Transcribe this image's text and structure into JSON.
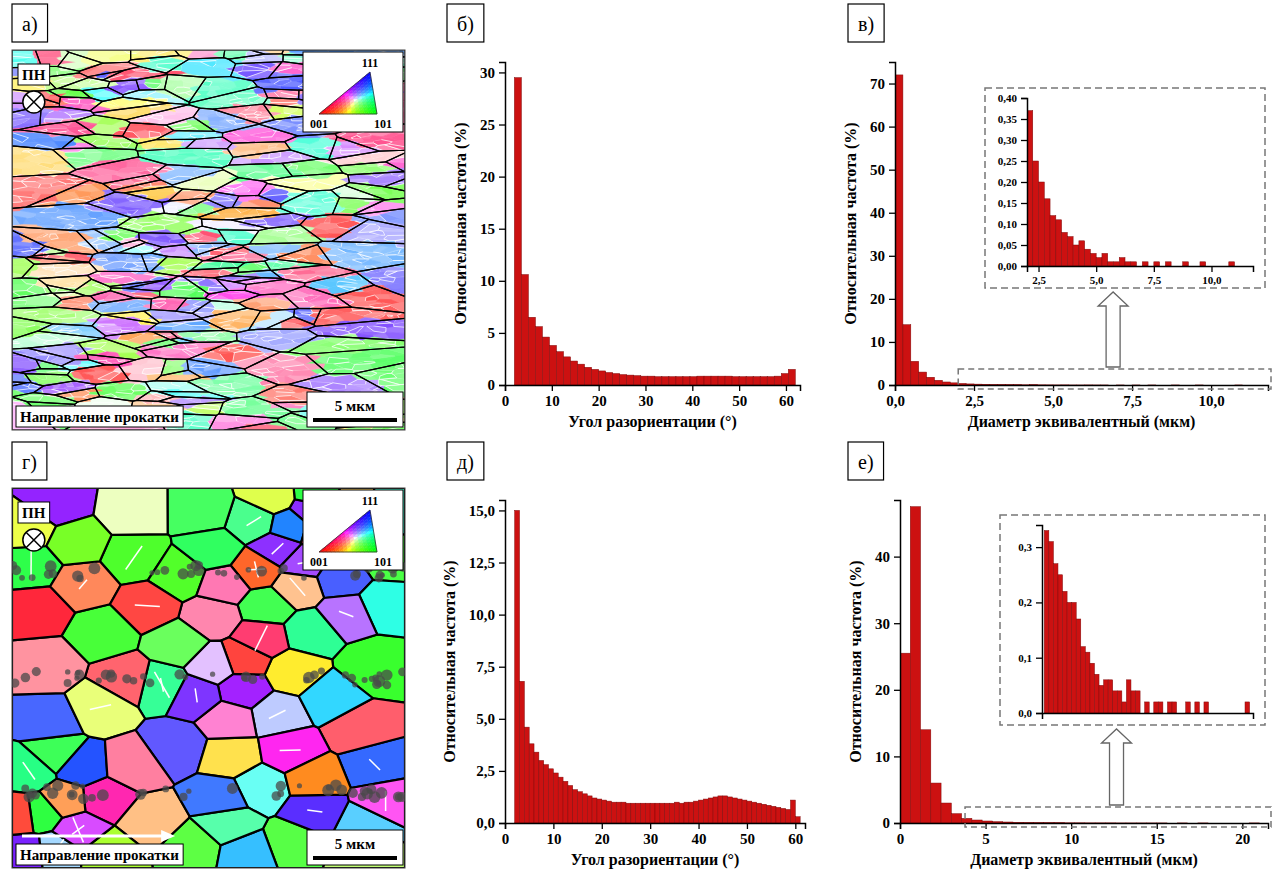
{
  "chart_data": [
    {
      "type": "histogram",
      "panel_label": "б)",
      "xlabel": "Угол разориентации (°)",
      "ylabel": "Относительная частота (%)",
      "color": "#cc1111",
      "bins": [
        2,
        3.5,
        5,
        6.5,
        8,
        9.5,
        11,
        12.5,
        14,
        15.5,
        17,
        18.5,
        20,
        21.5,
        23,
        24.5,
        26,
        27.5,
        29,
        30.5,
        32,
        33.5,
        35,
        36.5,
        38,
        39.5,
        41,
        42.5,
        44,
        45.5,
        47,
        48.5,
        50,
        51.5,
        53,
        54.5,
        56,
        57.5,
        59,
        60.5,
        62
      ],
      "values": [
        29.5,
        10.6,
        6.5,
        5.6,
        4.6,
        3.8,
        3.2,
        2.7,
        2.3,
        2.0,
        1.7,
        1.5,
        1.35,
        1.2,
        1.1,
        1.0,
        0.95,
        0.9,
        0.85,
        0.85,
        0.8,
        0.8,
        0.8,
        0.8,
        0.8,
        0.8,
        0.85,
        0.85,
        0.85,
        0.85,
        0.85,
        0.8,
        0.8,
        0.8,
        0.8,
        0.8,
        0.8,
        0.85,
        1.1,
        1.5
      ],
      "xlim": [
        0,
        63
      ],
      "xticks": [
        0,
        10,
        20,
        30,
        40,
        50,
        60
      ],
      "ylim": [
        0,
        31
      ],
      "yticks": [
        0,
        5,
        10,
        15,
        20,
        25,
        30
      ]
    },
    {
      "type": "histogram",
      "panel_label": "в)",
      "xlabel": "Диаметр эквивалентный (мкм)",
      "ylabel": "Относительная частота (%)",
      "color": "#cc1111",
      "bins": [
        0,
        0.25,
        0.5,
        0.75,
        1,
        1.25,
        1.5,
        1.75,
        2,
        2.25,
        2.5,
        2.75,
        3,
        3.25,
        3.5,
        3.75,
        4,
        4.25,
        4.5,
        4.75,
        5,
        5.25,
        5.5,
        5.75,
        6,
        6.25,
        6.5,
        6.75,
        7,
        7.25,
        7.5,
        7.75,
        8,
        8.25,
        8.5,
        8.75,
        9,
        9.25,
        9.5,
        9.75,
        10,
        10.25,
        10.5,
        10.75,
        11,
        11.25,
        11.5
      ],
      "values": [
        72,
        14,
        5.5,
        3.0,
        1.8,
        1.1,
        0.7,
        0.5,
        0.37,
        0.25,
        0.2,
        0.16,
        0.12,
        0.11,
        0.08,
        0.07,
        0.05,
        0.06,
        0.04,
        0.03,
        0.02,
        0.03,
        0.01,
        0.01,
        0.02,
        0.01,
        0.01,
        0,
        0.01,
        0,
        0.01,
        0,
        0.01,
        0,
        0,
        0.01,
        0,
        0,
        0.01,
        0,
        0,
        0,
        0,
        0.01,
        0,
        0
      ],
      "xlim": [
        0,
        11.8
      ],
      "xticks": [
        {
          "value": 0,
          "label": "0,0"
        },
        {
          "value": 2.5,
          "label": "2,5"
        },
        {
          "value": 5,
          "label": "5,0"
        },
        {
          "value": 7.5,
          "label": "7,5"
        },
        {
          "value": 10,
          "label": "10,0"
        }
      ],
      "ylim": [
        0,
        75
      ],
      "yticks": [
        0,
        10,
        20,
        30,
        40,
        50,
        60,
        70
      ],
      "inset": {
        "xlim": [
          2,
          11.8
        ],
        "xticks": [
          {
            "value": 2.5,
            "label": "2,5"
          },
          {
            "value": 5,
            "label": "5,0"
          },
          {
            "value": 7.5,
            "label": "7,5"
          },
          {
            "value": 10,
            "label": "10,0"
          }
        ],
        "ylim": [
          0,
          0.4
        ],
        "yticks": [
          {
            "value": 0,
            "label": "0,00"
          },
          {
            "value": 0.05,
            "label": "0,05"
          },
          {
            "value": 0.1,
            "label": "0,10"
          },
          {
            "value": 0.15,
            "label": "0,15"
          },
          {
            "value": 0.2,
            "label": "0,20"
          },
          {
            "value": 0.25,
            "label": "0,25"
          },
          {
            "value": 0.3,
            "label": "0,30"
          },
          {
            "value": 0.35,
            "label": "0,35"
          },
          {
            "value": 0.4,
            "label": "0,40"
          }
        ]
      }
    },
    {
      "type": "histogram",
      "panel_label": "д)",
      "xlabel": "Угол разориентации (°)",
      "ylabel": "Относительная частота (%)",
      "color": "#cc1111",
      "bins": [
        2,
        3,
        4,
        5,
        6,
        7,
        8,
        9,
        10,
        11,
        12,
        13,
        14,
        15,
        16,
        17,
        18,
        19,
        20,
        21,
        22,
        23,
        24,
        25,
        26,
        27,
        28,
        29,
        30,
        31,
        32,
        33,
        34,
        35,
        36,
        37,
        38,
        39,
        40,
        41,
        42,
        43,
        44,
        45,
        46,
        47,
        48,
        49,
        50,
        51,
        52,
        53,
        54,
        55,
        56,
        57,
        58,
        59,
        60,
        61
      ],
      "values": [
        15.0,
        6.8,
        4.6,
        3.8,
        3.4,
        3.0,
        2.8,
        2.6,
        2.4,
        2.2,
        2.0,
        1.8,
        1.6,
        1.5,
        1.4,
        1.3,
        1.2,
        1.15,
        1.1,
        1.05,
        1.0,
        1.0,
        1.0,
        0.95,
        0.95,
        0.95,
        0.95,
        0.95,
        0.95,
        0.95,
        0.95,
        0.95,
        0.95,
        1.0,
        0.95,
        1.0,
        1.0,
        1.05,
        1.1,
        1.15,
        1.2,
        1.25,
        1.3,
        1.3,
        1.25,
        1.2,
        1.15,
        1.1,
        1.05,
        1.0,
        0.95,
        0.9,
        0.85,
        0.8,
        0.75,
        0.7,
        0.65,
        1.1,
        0.3
      ],
      "xlim": [
        0,
        62
      ],
      "xticks": [
        0,
        10,
        20,
        30,
        40,
        50,
        60
      ],
      "ylim": [
        0,
        15.5
      ],
      "yticks": [
        {
          "value": 0,
          "label": "0,0"
        },
        {
          "value": 2.5,
          "label": "2,5"
        },
        {
          "value": 5,
          "label": "5,0"
        },
        {
          "value": 7.5,
          "label": "7,5"
        },
        {
          "value": 10,
          "label": "10,0"
        },
        {
          "value": 12.5,
          "label": "12,5"
        },
        {
          "value": 15,
          "label": "15,0"
        }
      ]
    },
    {
      "type": "histogram",
      "panel_label": "е)",
      "xlabel": "Диаметр эквивалентный (мкм)",
      "ylabel": "Относительная частота (%)",
      "color": "#cc1111",
      "bins": [
        0,
        0.6,
        1.2,
        1.8,
        2.4,
        3,
        3.6,
        4.2,
        4.8,
        5.4,
        6,
        6.6,
        7.2,
        7.8,
        8.4,
        9,
        9.6,
        10.2,
        10.8,
        11.4,
        12,
        12.6,
        13.2,
        13.8,
        14.4,
        15,
        15.6,
        16.2,
        16.8,
        17.4,
        18,
        18.6,
        19.2,
        19.8,
        20.4,
        21
      ],
      "values": [
        25.5,
        47.5,
        14,
        6,
        3,
        1.4,
        0.7,
        0.45,
        0.3,
        0.2,
        0.15,
        0.1,
        0.08,
        0.06,
        0.05,
        0.04,
        0.03,
        0.03,
        0.02,
        0.02,
        0.02,
        0.01,
        0.01,
        0.01,
        0.01,
        0.01,
        0,
        0.01,
        0,
        0.01,
        0,
        0,
        0,
        0,
        0.01
      ],
      "xlim": [
        0,
        21.5
      ],
      "xticks": [
        0,
        5,
        10,
        15,
        20
      ],
      "ylim": [
        0,
        48.5
      ],
      "yticks": [
        0,
        10,
        20,
        30,
        40
      ],
      "inset": {
        "tick_labels": "y",
        "bins": [
          4,
          4.4,
          4.8,
          5.2,
          5.6,
          6,
          6.4,
          6.8,
          7.2,
          7.6,
          8,
          8.4,
          8.8,
          9.2,
          9.6,
          10,
          10.4,
          10.8,
          11.2,
          11.6,
          12,
          12.4,
          12.8,
          13.2,
          13.6,
          14,
          14.4,
          14.8,
          15.2,
          15.6,
          16,
          16.4,
          16.8,
          17.2,
          17.6,
          18,
          18.4,
          18.8,
          19.2,
          19.6,
          20,
          20.4,
          20.8,
          21.2,
          21.6,
          22
        ],
        "values": [
          0.33,
          0.31,
          0.27,
          0.25,
          0.22,
          0.2,
          0.2,
          0.17,
          0.12,
          0.11,
          0.09,
          0.07,
          0.05,
          0.06,
          0.06,
          0.04,
          0.04,
          0.02,
          0.06,
          0.04,
          0.04,
          0,
          0.02,
          0,
          0.02,
          0.02,
          0,
          0.02,
          0.02,
          0,
          0,
          0.02,
          0,
          0.02,
          0,
          0.02,
          0,
          0,
          0,
          0,
          0,
          0,
          0,
          0,
          0.02
        ],
        "xlim": [
          3.8,
          22.3
        ],
        "ylim": [
          0,
          0.34
        ],
        "yticks": [
          {
            "value": 0,
            "label": "0,0"
          },
          {
            "value": 0.1,
            "label": "0,1"
          },
          {
            "value": 0.2,
            "label": "0,2"
          },
          {
            "value": 0.3,
            "label": "0,3"
          }
        ]
      }
    }
  ],
  "maps": [
    {
      "panel_label": "а)",
      "normal_label": "ПН",
      "direction_label": "Направление прокатки",
      "scale_label": "5 мкм",
      "ipf_labels": [
        "111",
        "001",
        "101"
      ]
    },
    {
      "panel_label": "г)",
      "normal_label": "ПН",
      "direction_label": "Направление прокатки",
      "scale_label": "5 мкм",
      "ipf_labels": [
        "111",
        "001",
        "101"
      ]
    }
  ]
}
